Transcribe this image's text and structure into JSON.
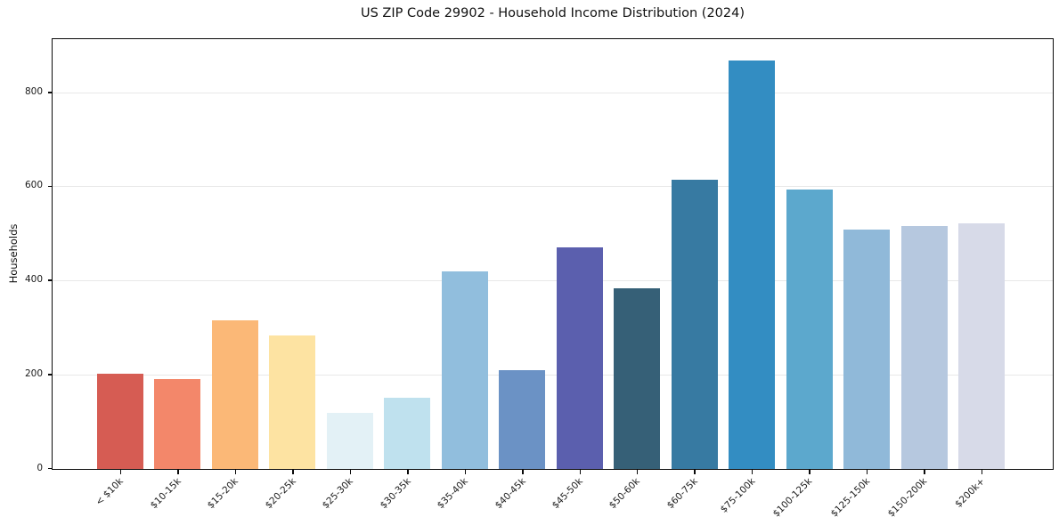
{
  "chart_data": {
    "type": "bar",
    "title": "US ZIP Code 29902 - Household Income Distribution (2024)",
    "xlabel": "",
    "ylabel": "Households",
    "categories": [
      "< $10k",
      "$10-15k",
      "$15-20k",
      "$20-25k",
      "$25-30k",
      "$30-35k",
      "$35-40k",
      "$40-45k",
      "$45-50k",
      "$50-60k",
      "$60-75k",
      "$75-100k",
      "$100-125k",
      "$125-150k",
      "$150-200k",
      "$200k+"
    ],
    "values": [
      202,
      192,
      317,
      283,
      120,
      151,
      420,
      211,
      471,
      385,
      615,
      869,
      594,
      510,
      517,
      523
    ],
    "bar_colors": [
      "#d65c53",
      "#f3876a",
      "#fbb877",
      "#fde3a2",
      "#e3f1f6",
      "#bfe1ee",
      "#91bedd",
      "#6b92c5",
      "#5b5fae",
      "#366077",
      "#377aa2",
      "#338dc2",
      "#5ca8cd",
      "#90b9d9",
      "#b6c8df",
      "#d7dae8"
    ],
    "ylim": [
      0,
      915
    ],
    "yticks": [
      0,
      200,
      400,
      600,
      800
    ],
    "ytick_labels": [
      "0",
      "200",
      "400",
      "600",
      "800"
    ],
    "grid": "y",
    "grid_color": "#e8e8e8",
    "axis_color": "#0a0a0a",
    "background_color": "#ffffff",
    "legend": "none",
    "x_tick_rotation_deg": 45
  }
}
